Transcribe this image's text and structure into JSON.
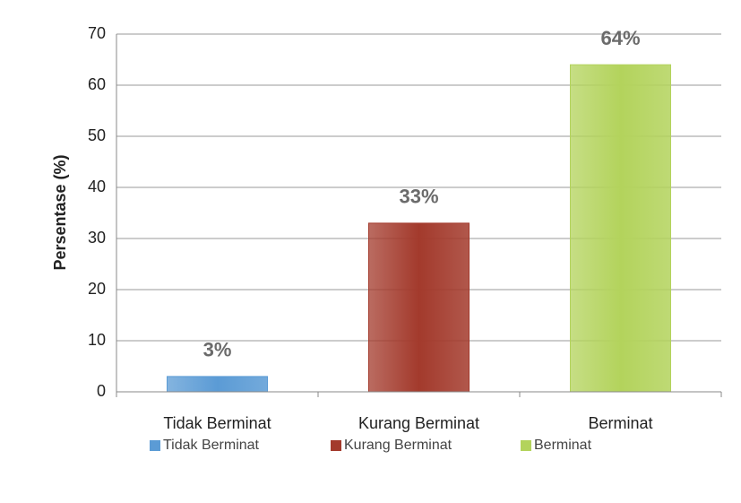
{
  "chart_data": {
    "type": "bar",
    "y_label": "Persentase (%)",
    "categories": [
      "Tidak Berminat",
      "Kurang Berminat",
      "Berminat"
    ],
    "values": [
      3,
      33,
      64
    ],
    "value_labels": [
      "3%",
      "33%",
      "64%"
    ],
    "colors": [
      "#5b9bd5",
      "#a33a2c",
      "#b3d35c"
    ],
    "ylim": [
      0,
      70
    ],
    "yticks": [
      0,
      10,
      20,
      30,
      40,
      50,
      60,
      70
    ],
    "grid": true,
    "legend": "bottom"
  }
}
